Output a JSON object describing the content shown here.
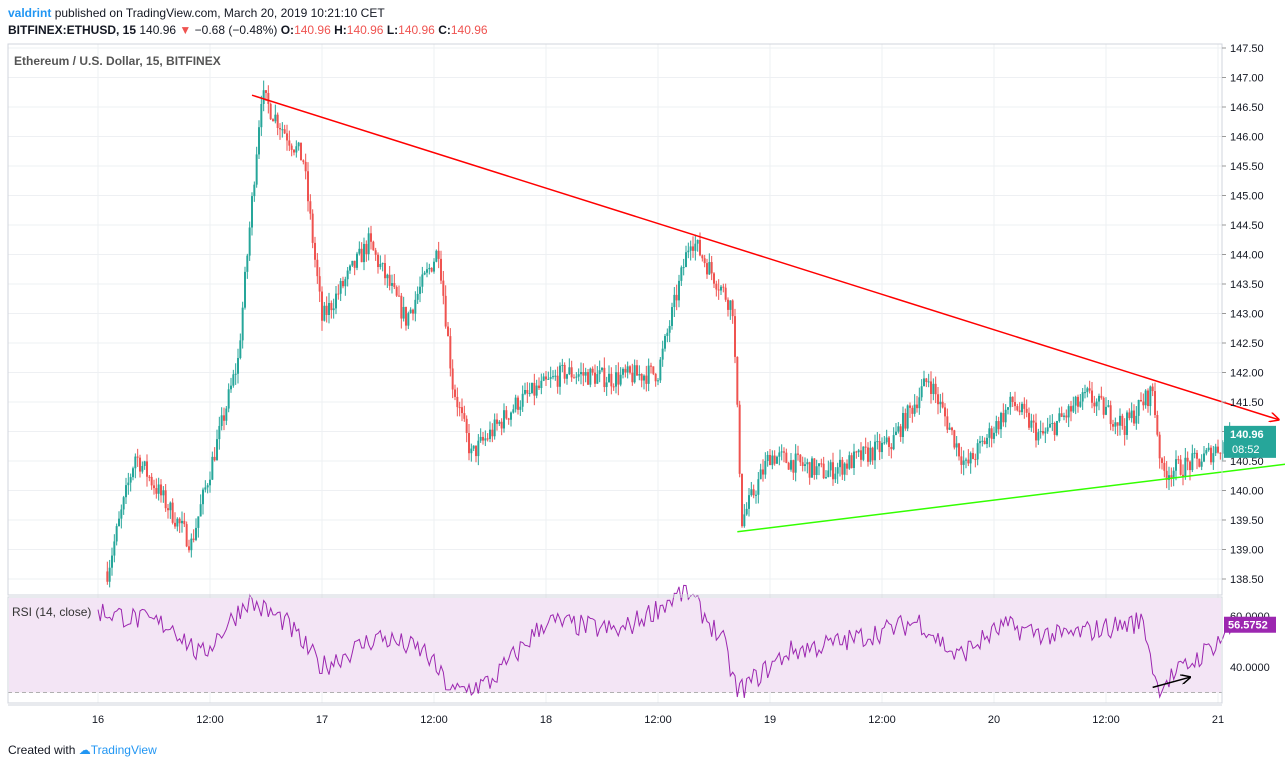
{
  "header": {
    "user": "valdrint",
    "published_text": "published on TradingView.com, March 20, 2019 10:21:10 CET",
    "symbol": "BITFINEX:ETHUSD, 15",
    "price": "140.96",
    "change": "−0.68 (−0.48%)",
    "o_label": "O:",
    "o": "140.96",
    "h_label": "H:",
    "h": "140.96",
    "l_label": "L:",
    "l": "140.96",
    "c_label": "C:",
    "c": "140.96"
  },
  "legend": {
    "title": "Ethereum / U.S. Dollar, 15, BITFINEX"
  },
  "rsi_label": "RSI (14, close)",
  "price_badge": {
    "price": "140.96",
    "countdown": "08:52",
    "color": "#26a69a"
  },
  "rsi_badge": {
    "value": "56.5752",
    "color": "#9c27b0"
  },
  "footer": {
    "created": "Created with",
    "brand": "TradingView"
  },
  "colors": {
    "up": "#26a69a",
    "down": "#ef5350",
    "resistance": "#ff0000",
    "support": "#33ff00",
    "rsi_line": "#9c27b0",
    "rsi_band": "#f3e5f5"
  },
  "chart_data": [
    {
      "type": "candlestick",
      "title": "Ethereum / U.S. Dollar, 15, BITFINEX",
      "x_ticks": [
        "16",
        "12:00",
        "17",
        "12:00",
        "18",
        "12:00",
        "19",
        "12:00",
        "20",
        "12:00",
        "21"
      ],
      "y_ticks": [
        "147.50",
        "147.00",
        "146.50",
        "146.00",
        "145.50",
        "145.00",
        "144.50",
        "144.00",
        "143.50",
        "143.00",
        "142.50",
        "142.00",
        "141.50",
        "141.00",
        "140.50",
        "140.00",
        "139.50",
        "139.00",
        "138.50"
      ],
      "ylim": [
        138.3,
        147.6
      ],
      "x_hours_range": [
        0,
        132
      ],
      "key_points": [
        {
          "hour": 0.5,
          "price": 138.3
        },
        {
          "hour": 4,
          "price": 140.6
        },
        {
          "hour": 10,
          "price": 139.1
        },
        {
          "hour": 15,
          "price": 142.2
        },
        {
          "hour": 17.5,
          "price": 146.7
        },
        {
          "hour": 22,
          "price": 145.6
        },
        {
          "hour": 24,
          "price": 142.9
        },
        {
          "hour": 29,
          "price": 144.2
        },
        {
          "hour": 33,
          "price": 142.9
        },
        {
          "hour": 36.5,
          "price": 144.1
        },
        {
          "hour": 38,
          "price": 141.8
        },
        {
          "hour": 40,
          "price": 140.6
        },
        {
          "hour": 45,
          "price": 141.5
        },
        {
          "hour": 50,
          "price": 142.0
        },
        {
          "hour": 55,
          "price": 141.9
        },
        {
          "hour": 60,
          "price": 142.0
        },
        {
          "hour": 63.5,
          "price": 144.3
        },
        {
          "hour": 68,
          "price": 143.1
        },
        {
          "hour": 69,
          "price": 139.5
        },
        {
          "hour": 72,
          "price": 140.6
        },
        {
          "hour": 78,
          "price": 140.3
        },
        {
          "hour": 85,
          "price": 140.8
        },
        {
          "hour": 89,
          "price": 141.9
        },
        {
          "hour": 93,
          "price": 140.4
        },
        {
          "hour": 98,
          "price": 141.5
        },
        {
          "hour": 101,
          "price": 140.9
        },
        {
          "hour": 106,
          "price": 141.6
        },
        {
          "hour": 110,
          "price": 141.1
        },
        {
          "hour": 113,
          "price": 141.7
        },
        {
          "hour": 114,
          "price": 140.3
        },
        {
          "hour": 118,
          "price": 140.5
        },
        {
          "hour": 122,
          "price": 140.96
        }
      ],
      "trendlines": [
        {
          "name": "resistance",
          "from": {
            "hour": 16.5,
            "price": 146.7
          },
          "to": {
            "hour": 126.5,
            "price": 141.2
          }
        },
        {
          "name": "support",
          "from": {
            "hour": 68.5,
            "price": 139.3
          },
          "to": {
            "hour": 130,
            "price": 140.5
          }
        }
      ]
    },
    {
      "type": "line",
      "title": "RSI (14, close)",
      "y_ticks": [
        "60.0000",
        "40.0000"
      ],
      "ylim": [
        27,
        73
      ],
      "band": [
        30,
        70
      ],
      "key_points": [
        {
          "hour": 0,
          "value": 62
        },
        {
          "hour": 8,
          "value": 56
        },
        {
          "hour": 11,
          "value": 44
        },
        {
          "hour": 16,
          "value": 66
        },
        {
          "hour": 20,
          "value": 58
        },
        {
          "hour": 24,
          "value": 40
        },
        {
          "hour": 30,
          "value": 52
        },
        {
          "hour": 35,
          "value": 46
        },
        {
          "hour": 38,
          "value": 30
        },
        {
          "hour": 42,
          "value": 34
        },
        {
          "hour": 48,
          "value": 58
        },
        {
          "hour": 56,
          "value": 54
        },
        {
          "hour": 63,
          "value": 70
        },
        {
          "hour": 67,
          "value": 50
        },
        {
          "hour": 68.5,
          "value": 30
        },
        {
          "hour": 74,
          "value": 46
        },
        {
          "hour": 80,
          "value": 50
        },
        {
          "hour": 88,
          "value": 58
        },
        {
          "hour": 92,
          "value": 44
        },
        {
          "hour": 97,
          "value": 56
        },
        {
          "hour": 103,
          "value": 52
        },
        {
          "hour": 112,
          "value": 58
        },
        {
          "hour": 113.5,
          "value": 32
        },
        {
          "hour": 118,
          "value": 44
        },
        {
          "hour": 122,
          "value": 56.5752
        }
      ],
      "divergence_arrow": {
        "from": {
          "hour": 113,
          "value": 32
        },
        "to": {
          "hour": 117,
          "value": 36
        }
      }
    }
  ]
}
